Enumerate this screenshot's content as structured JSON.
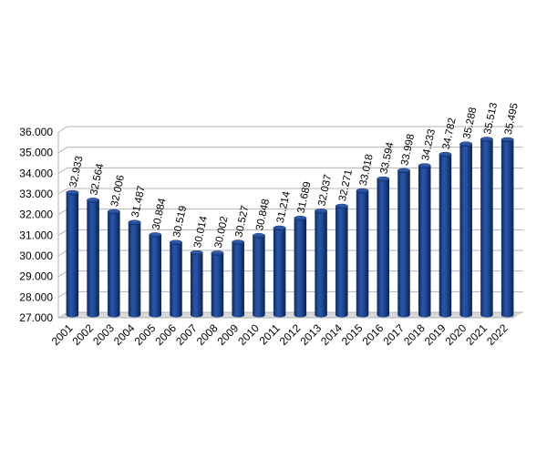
{
  "chart_data": {
    "type": "bar",
    "title": "",
    "xlabel": "",
    "ylabel": "",
    "ylim": [
      27000,
      36000
    ],
    "yticks": [
      27000,
      28000,
      29000,
      30000,
      31000,
      32000,
      33000,
      34000,
      35000,
      36000
    ],
    "ytick_labels": [
      "27.000",
      "28.000",
      "29.000",
      "30.000",
      "31.000",
      "32.000",
      "33.000",
      "34.000",
      "35.000",
      "36.000"
    ],
    "categories": [
      "2001",
      "2002",
      "2003",
      "2004",
      "2005",
      "2006",
      "2007",
      "2008",
      "2009",
      "2010",
      "2011",
      "2012",
      "2013",
      "2014",
      "2015",
      "2016",
      "2017",
      "2018",
      "2019",
      "2020",
      "2021",
      "2022"
    ],
    "values": [
      32933,
      32564,
      32006,
      31487,
      30884,
      30519,
      30014,
      30002,
      30527,
      30848,
      31214,
      31689,
      32037,
      32271,
      33018,
      33594,
      33998,
      34233,
      34782,
      35288,
      35513,
      35495
    ],
    "value_labels": [
      "32.933",
      "32.564",
      "32.006",
      "31.487",
      "30.884",
      "30.519",
      "30.014",
      "30.002",
      "30.527",
      "30.848",
      "31.214",
      "31.689",
      "32.037",
      "32.271",
      "33.018",
      "33.594",
      "33.998",
      "34.233",
      "34.782",
      "35.288",
      "35.513",
      "35.495"
    ],
    "grid": true,
    "legend": "none",
    "bar_color": "#1a3f82"
  }
}
